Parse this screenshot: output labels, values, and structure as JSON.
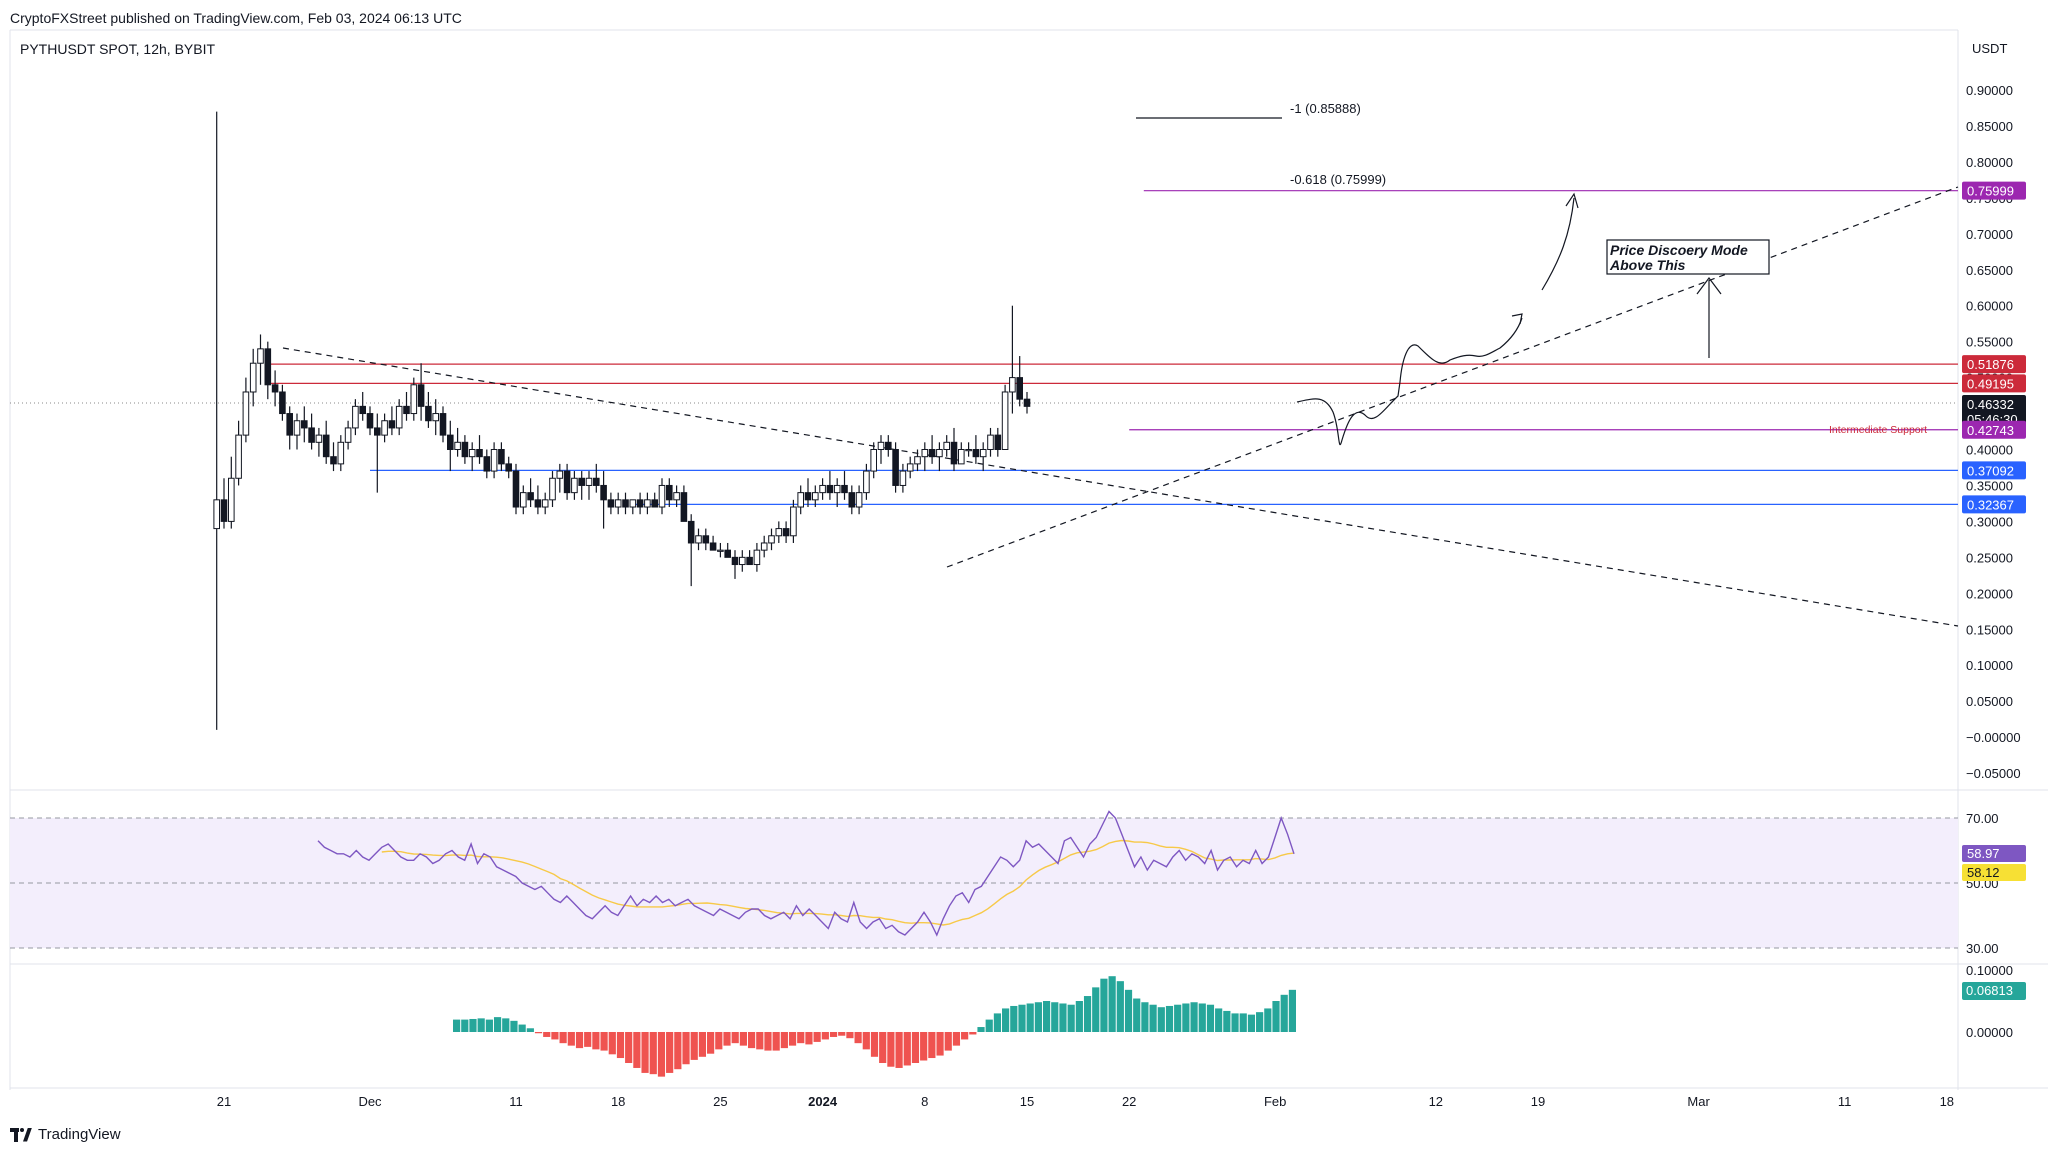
{
  "header": {
    "publisher": "CryptoFXStreet published on TradingView.com, Feb 03, 2024 06:13 UTC",
    "symbol": "PYTHUSDT SPOT, 12h, BYBIT",
    "currency": "USDT",
    "brand": "TradingView"
  },
  "chart_data": {
    "type": "candlestick",
    "price_axis": {
      "ticks": [
        "0.90000",
        "0.85000",
        "0.80000",
        "0.75000",
        "0.70000",
        "0.65000",
        "0.60000",
        "0.55000",
        "0.50000",
        "0.45000",
        "0.40000",
        "0.35000",
        "0.30000",
        "0.25000",
        "0.20000",
        "0.15000",
        "0.10000",
        "0.05000",
        "−0.00000",
        "−0.05000"
      ],
      "ylim": [
        -0.065,
        0.935
      ]
    },
    "time_axis": {
      "ticks": [
        {
          "label": "21",
          "day": 0
        },
        {
          "label": "Dec",
          "day": 10
        },
        {
          "label": "11",
          "day": 20
        },
        {
          "label": "18",
          "day": 27
        },
        {
          "label": "25",
          "day": 34
        },
        {
          "label": "2024",
          "day": 41
        },
        {
          "label": "8",
          "day": 48
        },
        {
          "label": "15",
          "day": 55
        },
        {
          "label": "22",
          "day": 62
        },
        {
          "label": "Feb",
          "day": 72
        },
        {
          "label": "12",
          "day": 83
        },
        {
          "label": "19",
          "day": 90
        },
        {
          "label": "Mar",
          "day": 101
        },
        {
          "label": "11",
          "day": 111
        },
        {
          "label": "18",
          "day": 118
        }
      ]
    },
    "price_labels": [
      {
        "value": 0.75999,
        "text": "0.75999",
        "color": "#9c27b0"
      },
      {
        "value": 0.51876,
        "text": "0.51876",
        "color": "#cc2a3a"
      },
      {
        "value": 0.49195,
        "text": "0.49195",
        "color": "#cc2a3a"
      },
      {
        "value": 0.46332,
        "text": "0.46332",
        "sub": "05:46:30",
        "color": "#131722"
      },
      {
        "value": 0.42743,
        "text": "0.42743",
        "color": "#9c27b0"
      },
      {
        "value": 0.37092,
        "text": "0.37092",
        "color": "#2962ff"
      },
      {
        "value": 0.32367,
        "text": "0.32367",
        "color": "#2962ff"
      }
    ],
    "horizontal_levels": [
      {
        "value": 0.75999,
        "color": "#9c27b0",
        "from_day": 63
      },
      {
        "value": 0.51876,
        "color": "#cc2a3a",
        "from_day": 3
      },
      {
        "value": 0.49195,
        "color": "#cc2a3a",
        "from_day": 3
      },
      {
        "value": 0.42743,
        "color": "#9c27b0",
        "from_day": 62
      },
      {
        "value": 0.37092,
        "color": "#2962ff",
        "from_day": 10
      },
      {
        "value": 0.32367,
        "color": "#2962ff",
        "from_day": 28
      }
    ],
    "annotations": {
      "fib_1": "-1 (0.85888)",
      "fib_618": "-0.618 (0.75999)",
      "discovery": [
        "Price Discoery Mode",
        "Above This"
      ],
      "support": "Intermediate Support"
    },
    "candles": [
      [
        -0.5,
        0.29,
        0.87,
        0.01,
        0.33
      ],
      [
        0,
        0.33,
        0.36,
        0.29,
        0.3
      ],
      [
        0.5,
        0.3,
        0.39,
        0.29,
        0.36
      ],
      [
        1,
        0.36,
        0.44,
        0.35,
        0.42
      ],
      [
        1.5,
        0.42,
        0.5,
        0.41,
        0.48
      ],
      [
        2,
        0.48,
        0.54,
        0.46,
        0.52
      ],
      [
        2.5,
        0.52,
        0.56,
        0.49,
        0.54
      ],
      [
        3,
        0.54,
        0.55,
        0.47,
        0.49
      ],
      [
        3.5,
        0.49,
        0.51,
        0.46,
        0.48
      ],
      [
        4,
        0.48,
        0.49,
        0.44,
        0.45
      ],
      [
        4.5,
        0.45,
        0.46,
        0.4,
        0.42
      ],
      [
        5,
        0.42,
        0.45,
        0.4,
        0.44
      ],
      [
        5.5,
        0.44,
        0.46,
        0.41,
        0.43
      ],
      [
        6,
        0.43,
        0.45,
        0.4,
        0.41
      ],
      [
        6.5,
        0.41,
        0.43,
        0.39,
        0.42
      ],
      [
        7,
        0.42,
        0.44,
        0.38,
        0.39
      ],
      [
        7.5,
        0.39,
        0.41,
        0.37,
        0.38
      ],
      [
        8,
        0.38,
        0.42,
        0.37,
        0.41
      ],
      [
        8.5,
        0.41,
        0.44,
        0.4,
        0.43
      ],
      [
        9,
        0.43,
        0.47,
        0.42,
        0.46
      ],
      [
        9.5,
        0.46,
        0.48,
        0.44,
        0.45
      ],
      [
        10,
        0.45,
        0.46,
        0.42,
        0.43
      ],
      [
        10.5,
        0.43,
        0.45,
        0.34,
        0.42
      ],
      [
        11,
        0.42,
        0.45,
        0.41,
        0.44
      ],
      [
        11.5,
        0.44,
        0.46,
        0.42,
        0.43
      ],
      [
        12,
        0.43,
        0.47,
        0.42,
        0.46
      ],
      [
        12.5,
        0.46,
        0.48,
        0.44,
        0.45
      ],
      [
        13,
        0.45,
        0.5,
        0.44,
        0.49
      ],
      [
        13.5,
        0.49,
        0.52,
        0.44,
        0.46
      ],
      [
        14,
        0.46,
        0.48,
        0.43,
        0.44
      ],
      [
        14.5,
        0.44,
        0.47,
        0.42,
        0.45
      ],
      [
        15,
        0.45,
        0.46,
        0.41,
        0.42
      ],
      [
        15.5,
        0.42,
        0.44,
        0.37,
        0.4
      ],
      [
        16,
        0.4,
        0.43,
        0.39,
        0.41
      ],
      [
        16.5,
        0.41,
        0.42,
        0.38,
        0.39
      ],
      [
        17,
        0.39,
        0.41,
        0.37,
        0.4
      ],
      [
        17.5,
        0.4,
        0.42,
        0.38,
        0.39
      ],
      [
        18,
        0.39,
        0.4,
        0.36,
        0.37
      ],
      [
        18.5,
        0.37,
        0.41,
        0.36,
        0.4
      ],
      [
        19,
        0.4,
        0.41,
        0.37,
        0.38
      ],
      [
        19.5,
        0.38,
        0.39,
        0.36,
        0.37
      ],
      [
        20,
        0.37,
        0.38,
        0.31,
        0.32
      ],
      [
        20.5,
        0.32,
        0.35,
        0.31,
        0.34
      ],
      [
        21,
        0.34,
        0.36,
        0.32,
        0.33
      ],
      [
        21.5,
        0.33,
        0.35,
        0.31,
        0.32
      ],
      [
        22,
        0.32,
        0.34,
        0.31,
        0.33
      ],
      [
        22.5,
        0.33,
        0.37,
        0.32,
        0.36
      ],
      [
        23,
        0.36,
        0.38,
        0.34,
        0.37
      ],
      [
        23.5,
        0.37,
        0.38,
        0.33,
        0.34
      ],
      [
        24,
        0.34,
        0.37,
        0.33,
        0.36
      ],
      [
        24.5,
        0.36,
        0.37,
        0.33,
        0.35
      ],
      [
        25,
        0.35,
        0.37,
        0.33,
        0.36
      ],
      [
        25.5,
        0.36,
        0.38,
        0.34,
        0.35
      ],
      [
        26,
        0.35,
        0.37,
        0.29,
        0.33
      ],
      [
        26.5,
        0.33,
        0.34,
        0.31,
        0.32
      ],
      [
        27,
        0.32,
        0.34,
        0.31,
        0.33
      ],
      [
        27.5,
        0.33,
        0.34,
        0.31,
        0.32
      ],
      [
        28,
        0.32,
        0.33,
        0.31,
        0.33
      ],
      [
        28.5,
        0.33,
        0.34,
        0.31,
        0.32
      ],
      [
        29,
        0.32,
        0.34,
        0.31,
        0.33
      ],
      [
        29.5,
        0.33,
        0.34,
        0.32,
        0.32
      ],
      [
        30,
        0.32,
        0.36,
        0.31,
        0.35
      ],
      [
        30.5,
        0.35,
        0.36,
        0.32,
        0.33
      ],
      [
        31,
        0.33,
        0.35,
        0.32,
        0.34
      ],
      [
        31.5,
        0.34,
        0.35,
        0.3,
        0.3
      ],
      [
        32,
        0.3,
        0.31,
        0.21,
        0.27
      ],
      [
        32.5,
        0.27,
        0.29,
        0.26,
        0.28
      ],
      [
        33,
        0.28,
        0.29,
        0.26,
        0.27
      ],
      [
        33.5,
        0.27,
        0.28,
        0.26,
        0.26
      ],
      [
        34,
        0.26,
        0.27,
        0.25,
        0.26
      ],
      [
        34.5,
        0.26,
        0.27,
        0.25,
        0.25
      ],
      [
        35,
        0.25,
        0.26,
        0.22,
        0.24
      ],
      [
        35.5,
        0.24,
        0.26,
        0.23,
        0.25
      ],
      [
        36,
        0.25,
        0.26,
        0.24,
        0.24
      ],
      [
        36.5,
        0.24,
        0.27,
        0.23,
        0.26
      ],
      [
        37,
        0.26,
        0.28,
        0.25,
        0.27
      ],
      [
        37.5,
        0.27,
        0.29,
        0.26,
        0.28
      ],
      [
        38,
        0.28,
        0.3,
        0.27,
        0.29
      ],
      [
        38.5,
        0.29,
        0.3,
        0.27,
        0.28
      ],
      [
        39,
        0.28,
        0.33,
        0.27,
        0.32
      ],
      [
        39.5,
        0.32,
        0.35,
        0.31,
        0.34
      ],
      [
        40,
        0.34,
        0.36,
        0.32,
        0.33
      ],
      [
        40.5,
        0.33,
        0.35,
        0.32,
        0.34
      ],
      [
        41,
        0.34,
        0.36,
        0.33,
        0.35
      ],
      [
        41.5,
        0.35,
        0.37,
        0.33,
        0.34
      ],
      [
        42,
        0.34,
        0.36,
        0.32,
        0.35
      ],
      [
        42.5,
        0.35,
        0.37,
        0.33,
        0.34
      ],
      [
        43,
        0.34,
        0.35,
        0.31,
        0.32
      ],
      [
        43.5,
        0.32,
        0.35,
        0.31,
        0.34
      ],
      [
        44,
        0.34,
        0.38,
        0.33,
        0.37
      ],
      [
        44.5,
        0.37,
        0.41,
        0.36,
        0.4
      ],
      [
        45,
        0.4,
        0.42,
        0.38,
        0.41
      ],
      [
        45.5,
        0.41,
        0.42,
        0.39,
        0.4
      ],
      [
        46,
        0.4,
        0.41,
        0.34,
        0.35
      ],
      [
        46.5,
        0.35,
        0.38,
        0.34,
        0.37
      ],
      [
        47,
        0.37,
        0.39,
        0.36,
        0.38
      ],
      [
        47.5,
        0.38,
        0.4,
        0.37,
        0.39
      ],
      [
        48,
        0.39,
        0.41,
        0.37,
        0.4
      ],
      [
        48.5,
        0.4,
        0.42,
        0.38,
        0.39
      ],
      [
        49,
        0.39,
        0.41,
        0.37,
        0.4
      ],
      [
        49.5,
        0.4,
        0.42,
        0.39,
        0.41
      ],
      [
        50,
        0.41,
        0.43,
        0.37,
        0.38
      ],
      [
        50.5,
        0.38,
        0.41,
        0.38,
        0.4
      ],
      [
        51,
        0.4,
        0.41,
        0.39,
        0.4
      ],
      [
        51.5,
        0.4,
        0.42,
        0.38,
        0.39
      ],
      [
        52,
        0.39,
        0.41,
        0.37,
        0.4
      ],
      [
        52.5,
        0.4,
        0.43,
        0.39,
        0.42
      ],
      [
        53,
        0.42,
        0.43,
        0.39,
        0.4
      ],
      [
        53.5,
        0.4,
        0.49,
        0.4,
        0.48
      ],
      [
        54,
        0.48,
        0.6,
        0.45,
        0.5
      ],
      [
        54.5,
        0.5,
        0.53,
        0.46,
        0.47
      ],
      [
        55,
        0.47,
        0.48,
        0.45,
        0.46
      ]
    ],
    "rsi": {
      "ticks": [
        "70.00",
        "50.00",
        "30.00"
      ],
      "value_label": "58.97",
      "ma_label": "58.12",
      "line_color": "#7e57c2",
      "ma_color": "#f7c948",
      "values": [
        63,
        61,
        60,
        59,
        59,
        58,
        60,
        58,
        57,
        59,
        61,
        62,
        60,
        58,
        57,
        57,
        59,
        58,
        56,
        57,
        59,
        60,
        58,
        57,
        62,
        56,
        59,
        58,
        55,
        54,
        53,
        52,
        50,
        49,
        48,
        49,
        47,
        45,
        44,
        46,
        44,
        42,
        40,
        39,
        41,
        43,
        41,
        40,
        43,
        46,
        43,
        45,
        44,
        46,
        44,
        45,
        43,
        44,
        45,
        43,
        42,
        41,
        40,
        42,
        41,
        40,
        39,
        41,
        42,
        42,
        40,
        39,
        40,
        41,
        39,
        43,
        40,
        42,
        40,
        38,
        36,
        41,
        39,
        38,
        44,
        38,
        36,
        38,
        39,
        36,
        37,
        35,
        34,
        36,
        38,
        41,
        38,
        34,
        39,
        43,
        46,
        47,
        44,
        48,
        49,
        52,
        55,
        58,
        57,
        55,
        57,
        63,
        61,
        62,
        60,
        58,
        56,
        63,
        64,
        61,
        58,
        62,
        64,
        68,
        72,
        70,
        65,
        60,
        55,
        58,
        54,
        57,
        56,
        55,
        58,
        60,
        57,
        59,
        58,
        56,
        60,
        54,
        57,
        58,
        55,
        57,
        56,
        60,
        56,
        58,
        64,
        70,
        65,
        59
      ]
    },
    "oscillator": {
      "ticks": [
        "0.10000",
        "0.00000"
      ],
      "value_label": "0.06813",
      "ylim": [
        -0.09,
        0.108
      ],
      "pos_color": "#26a69a",
      "neg_color": "#ef5350",
      "values": [
        0.02,
        0.02,
        0.021,
        0.022,
        0.02,
        0.024,
        0.022,
        0.018,
        0.012,
        0.006,
        -0.002,
        -0.008,
        -0.012,
        -0.018,
        -0.022,
        -0.026,
        -0.024,
        -0.028,
        -0.03,
        -0.036,
        -0.042,
        -0.05,
        -0.058,
        -0.066,
        -0.068,
        -0.072,
        -0.066,
        -0.06,
        -0.052,
        -0.045,
        -0.04,
        -0.035,
        -0.028,
        -0.022,
        -0.018,
        -0.022,
        -0.026,
        -0.028,
        -0.03,
        -0.03,
        -0.026,
        -0.022,
        -0.018,
        -0.02,
        -0.016,
        -0.012,
        -0.008,
        -0.006,
        -0.01,
        -0.018,
        -0.028,
        -0.04,
        -0.05,
        -0.056,
        -0.058,
        -0.054,
        -0.05,
        -0.046,
        -0.042,
        -0.038,
        -0.03,
        -0.022,
        -0.012,
        -0.004,
        0.008,
        0.02,
        0.03,
        0.038,
        0.042,
        0.044,
        0.046,
        0.048,
        0.05,
        0.048,
        0.046,
        0.044,
        0.05,
        0.058,
        0.072,
        0.086,
        0.09,
        0.082,
        0.068,
        0.054,
        0.048,
        0.044,
        0.04,
        0.042,
        0.044,
        0.046,
        0.048,
        0.046,
        0.044,
        0.038,
        0.034,
        0.03,
        0.03,
        0.028,
        0.032,
        0.038,
        0.05,
        0.06,
        0.068
      ]
    }
  }
}
